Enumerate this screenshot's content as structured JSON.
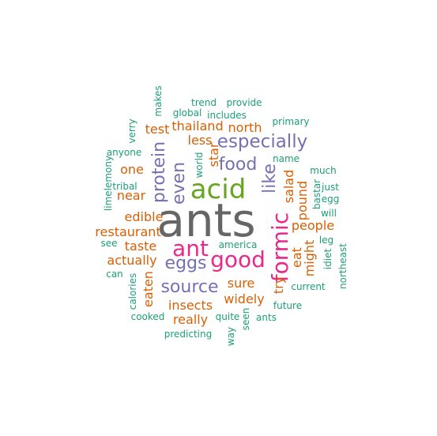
{
  "colors": {
    "gray": "#666666",
    "green": "#66a61e",
    "pink": "#e7298a",
    "purple": "#7570b3",
    "orange": "#d95f02",
    "teal": "#1b9e77"
  },
  "words": [
    {
      "text": "ants",
      "color": "gray"
    },
    {
      "text": "acid",
      "color": "green"
    },
    {
      "text": "ant",
      "color": "pink"
    },
    {
      "text": "good",
      "color": "pink"
    },
    {
      "text": "formic",
      "color": "pink"
    },
    {
      "text": "especially",
      "color": "purple"
    },
    {
      "text": "eggs",
      "color": "purple"
    },
    {
      "text": "source",
      "color": "purple"
    },
    {
      "text": "protein",
      "color": "purple"
    },
    {
      "text": "even",
      "color": "purple"
    },
    {
      "text": "food",
      "color": "purple"
    },
    {
      "text": "like",
      "color": "purple"
    },
    {
      "text": "thailand",
      "color": "orange"
    },
    {
      "text": "north",
      "color": "orange"
    },
    {
      "text": "test",
      "color": "orange"
    },
    {
      "text": "less",
      "color": "orange"
    },
    {
      "text": "star",
      "color": "orange"
    },
    {
      "text": "one",
      "color": "orange"
    },
    {
      "text": "near",
      "color": "orange"
    },
    {
      "text": "edible",
      "color": "orange"
    },
    {
      "text": "restaurant",
      "color": "orange"
    },
    {
      "text": "taste",
      "color": "orange"
    },
    {
      "text": "actually",
      "color": "orange"
    },
    {
      "text": "eaten",
      "color": "orange"
    },
    {
      "text": "insects",
      "color": "orange"
    },
    {
      "text": "really",
      "color": "orange"
    },
    {
      "text": "sure",
      "color": "orange"
    },
    {
      "text": "widely",
      "color": "orange"
    },
    {
      "text": "try",
      "color": "orange"
    },
    {
      "text": "eat",
      "color": "orange"
    },
    {
      "text": "salad",
      "color": "orange"
    },
    {
      "text": "pound",
      "color": "orange"
    },
    {
      "text": "people",
      "color": "orange"
    },
    {
      "text": "might",
      "color": "orange"
    },
    {
      "text": "makes",
      "color": "teal"
    },
    {
      "text": "trend",
      "color": "teal"
    },
    {
      "text": "provide",
      "color": "teal"
    },
    {
      "text": "global",
      "color": "teal"
    },
    {
      "text": "includes",
      "color": "teal"
    },
    {
      "text": "primary",
      "color": "teal"
    },
    {
      "text": "verry",
      "color": "teal"
    },
    {
      "text": "anyone",
      "color": "teal"
    },
    {
      "text": "world",
      "color": "teal"
    },
    {
      "text": "name",
      "color": "teal"
    },
    {
      "text": "much",
      "color": "teal"
    },
    {
      "text": "limelemony",
      "color": "teal"
    },
    {
      "text": "tribal",
      "color": "teal"
    },
    {
      "text": "bastar",
      "color": "teal"
    },
    {
      "text": "just",
      "color": "teal"
    },
    {
      "text": "egg",
      "color": "teal"
    },
    {
      "text": "will",
      "color": "teal"
    },
    {
      "text": "see",
      "color": "teal"
    },
    {
      "text": "can",
      "color": "teal"
    },
    {
      "text": "america",
      "color": "teal"
    },
    {
      "text": "leg",
      "color": "teal"
    },
    {
      "text": "idiet",
      "color": "teal"
    },
    {
      "text": "northeast",
      "color": "teal"
    },
    {
      "text": "calories",
      "color": "teal"
    },
    {
      "text": "current",
      "color": "teal"
    },
    {
      "text": "future",
      "color": "teal"
    },
    {
      "text": "cooked",
      "color": "teal"
    },
    {
      "text": "quite",
      "color": "teal"
    },
    {
      "text": "ants",
      "color": "teal"
    },
    {
      "text": "seen",
      "color": "teal"
    },
    {
      "text": "way",
      "color": "teal"
    },
    {
      "text": "predicting",
      "color": "teal"
    }
  ]
}
